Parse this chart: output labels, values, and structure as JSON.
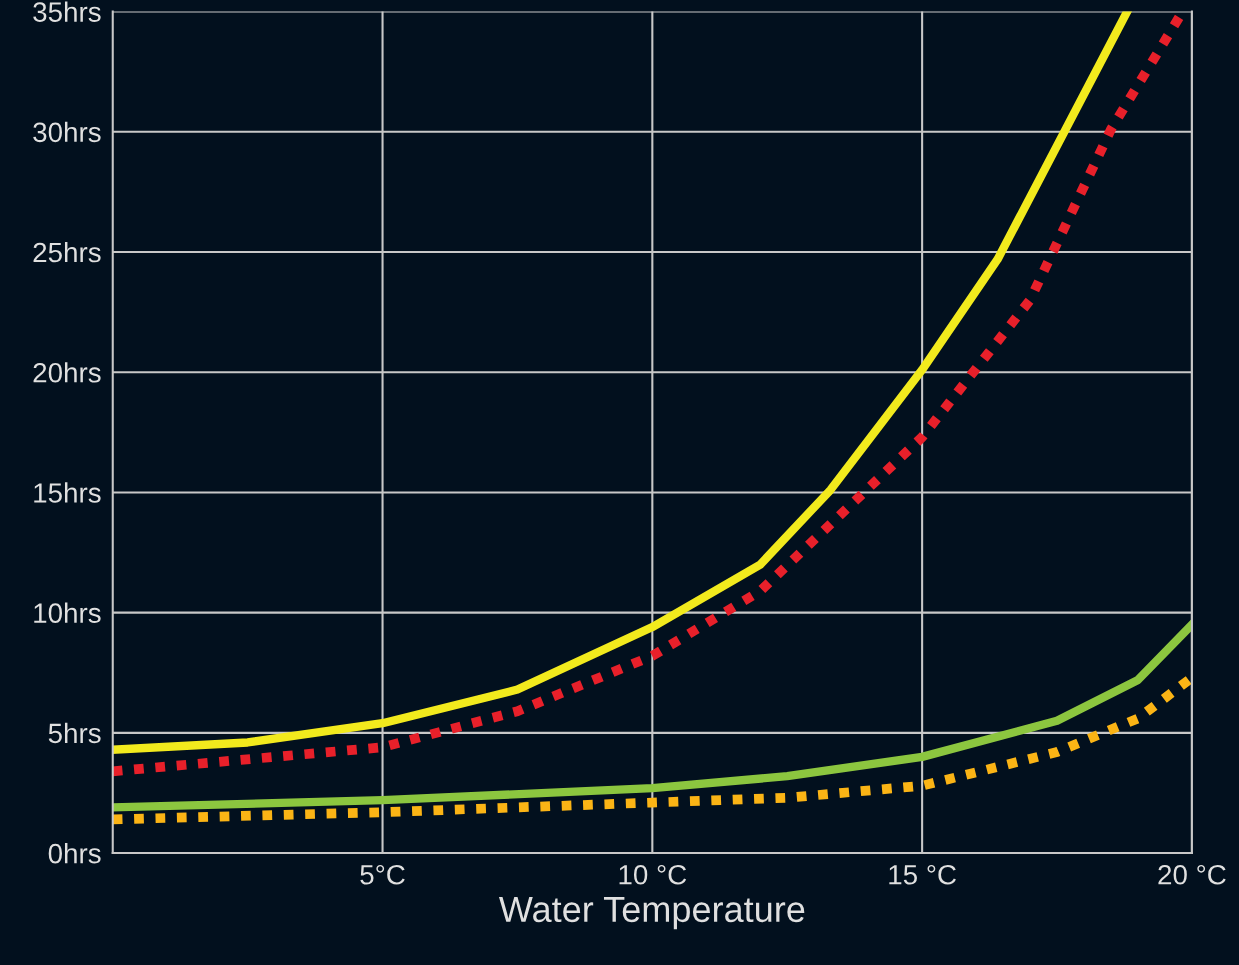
{
  "chart_data": {
    "type": "line",
    "xlabel": "Water Temperature",
    "xlim": [
      0,
      20
    ],
    "ylim": [
      0,
      35
    ],
    "xticks": [
      {
        "value": 5,
        "label": "5°C"
      },
      {
        "value": 10,
        "label": "10 °C"
      },
      {
        "value": 15,
        "label": "15 °C"
      },
      {
        "value": 20,
        "label": "20 °C"
      }
    ],
    "yticks": [
      {
        "value": 0,
        "label": "0hrs"
      },
      {
        "value": 5,
        "label": "5hrs"
      },
      {
        "value": 10,
        "label": "10hrs"
      },
      {
        "value": 15,
        "label": "15hrs"
      },
      {
        "value": 20,
        "label": "20hrs"
      },
      {
        "value": 25,
        "label": "25hrs"
      },
      {
        "value": 30,
        "label": "30hrs"
      },
      {
        "value": 35,
        "label": "35hrs"
      }
    ],
    "grid": true,
    "marker": "none",
    "series": [
      {
        "color": "#f2ea1d",
        "line_style": "solid",
        "x": [
          0,
          2.5,
          5,
          7.5,
          10,
          12,
          13.3,
          15,
          16.4,
          18.8
        ],
        "values": [
          4.3,
          4.6,
          5.4,
          6.8,
          9.4,
          12.0,
          15.1,
          20.1,
          24.7,
          35
        ]
      },
      {
        "color": "#e8202a",
        "line_style": "dotted",
        "x": [
          0,
          5,
          7.5,
          10,
          12,
          15,
          17,
          18.5,
          19.8
        ],
        "values": [
          3.4,
          4.4,
          5.9,
          8.2,
          10.9,
          17.3,
          23.0,
          30.1,
          34.9
        ]
      },
      {
        "color": "#8cc63f",
        "line_style": "solid",
        "x": [
          0,
          5,
          10,
          12.5,
          15,
          17.5,
          19,
          20
        ],
        "values": [
          1.9,
          2.2,
          2.7,
          3.2,
          4.0,
          5.5,
          7.2,
          9.5
        ]
      },
      {
        "color": "#fbb415",
        "line_style": "dotted",
        "x": [
          0,
          5,
          10,
          12.5,
          15,
          17.5,
          19,
          20
        ],
        "values": [
          1.4,
          1.7,
          2.1,
          2.3,
          2.8,
          4.2,
          5.6,
          7.3
        ]
      }
    ]
  }
}
